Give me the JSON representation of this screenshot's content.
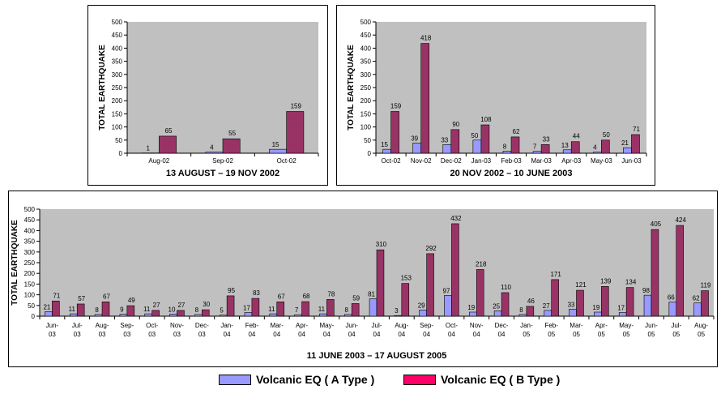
{
  "colors": {
    "type_a": "#9999ff",
    "type_b": "#993366",
    "plot_bg": "#c0c0c0"
  },
  "legend": {
    "a_label": "Volcanic EQ ( A Type )",
    "b_label": "Volcanic EQ ( B Type )"
  },
  "chart_data": [
    {
      "type": "bar",
      "title": "13 AUGUST – 19 NOV 2002",
      "ylabel": "TOTAL EARTHQUAKE",
      "xlabel": "",
      "ylim": [
        0,
        500
      ],
      "yticks": [
        "0",
        "50",
        "100",
        "150",
        "200",
        "250",
        "300",
        "350",
        "400",
        "450",
        "500"
      ],
      "grid": false,
      "categories": [
        "Aug-02",
        "Sep-02",
        "Oct-02"
      ],
      "series": [
        {
          "name": "Volcanic EQ ( A Type )",
          "values": [
            1,
            4,
            15
          ]
        },
        {
          "name": "Volcanic EQ ( B Type )",
          "values": [
            65,
            55,
            159
          ]
        }
      ]
    },
    {
      "type": "bar",
      "title": "20 NOV 2002 – 10 JUNE 2003",
      "ylabel": "TOTAL EARTHQUAKE",
      "xlabel": "",
      "ylim": [
        0,
        500
      ],
      "yticks": [
        "0",
        "50",
        "100",
        "150",
        "200",
        "250",
        "300",
        "350",
        "400",
        "450",
        "500"
      ],
      "grid": false,
      "categories": [
        "Oct-02",
        "Nov-02",
        "Dec-02",
        "Jan-03",
        "Feb-03",
        "Mar-03",
        "Apr-03",
        "May-03",
        "Jun-03"
      ],
      "series": [
        {
          "name": "Volcanic EQ ( A Type )",
          "values": [
            15,
            39,
            33,
            50,
            8,
            7,
            13,
            4,
            21
          ]
        },
        {
          "name": "Volcanic EQ ( B Type )",
          "values": [
            159,
            418,
            90,
            108,
            62,
            33,
            44,
            50,
            71
          ]
        }
      ]
    },
    {
      "type": "bar",
      "title": "11 JUNE 2003 – 17 AUGUST 2005",
      "ylabel": "TOTAL EARTHQUAKE",
      "xlabel": "",
      "ylim": [
        0,
        500
      ],
      "yticks": [
        "0",
        "50",
        "100",
        "150",
        "200",
        "250",
        "300",
        "350",
        "400",
        "450",
        "500"
      ],
      "grid": false,
      "categories": [
        "Jun-03",
        "Jul-03",
        "Aug-03",
        "Sep-03",
        "Oct-03",
        "Nov-03",
        "Dec-03",
        "Jan-04",
        "Feb-04",
        "Mar-04",
        "Apr-04",
        "May-04",
        "Jun-04",
        "Jul-04",
        "Aug-04",
        "Sep-04",
        "Oct-04",
        "Nov-04",
        "Dec-04",
        "Jan-05",
        "Feb-05",
        "Mar-05",
        "Apr-05",
        "May-05",
        "Jun-05",
        "Jul-05",
        "Aug-05"
      ],
      "series": [
        {
          "name": "Volcanic EQ ( A Type )",
          "values": [
            21,
            11,
            8,
            9,
            11,
            10,
            8,
            5,
            17,
            11,
            7,
            11,
            8,
            81,
            3,
            29,
            97,
            19,
            25,
            8,
            27,
            33,
            19,
            17,
            98,
            66,
            62
          ]
        },
        {
          "name": "Volcanic EQ ( B Type )",
          "values": [
            71,
            57,
            67,
            49,
            27,
            27,
            30,
            95,
            83,
            67,
            68,
            78,
            59,
            310,
            153,
            292,
            432,
            218,
            110,
            46,
            171,
            121,
            139,
            134,
            405,
            424,
            119
          ]
        }
      ]
    }
  ]
}
